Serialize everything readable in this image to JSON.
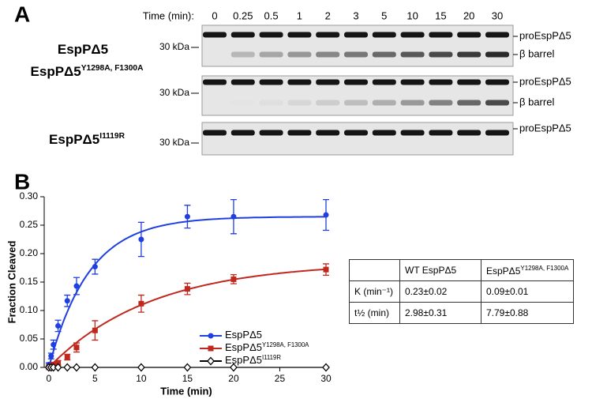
{
  "panel_a": {
    "label": "A",
    "time_label": "Time (min):",
    "time_points": [
      0,
      0.25,
      0.5,
      1,
      2,
      3,
      5,
      10,
      15,
      20,
      30
    ],
    "blots": [
      {
        "name": {
          "text": "EspPΔ5"
        },
        "marker": "30 kDa",
        "bands": [
          "proEspPΔ5",
          "β barrel"
        ]
      },
      {
        "name": {
          "text": "EspPΔ5",
          "sup": "Y1298A, F1300A"
        },
        "marker": "30 kDa",
        "bands": [
          "proEspPΔ5",
          "β barrel"
        ]
      },
      {
        "name": {
          "text": "EspPΔ5",
          "sup": "I1119R"
        },
        "marker": "30 kDa",
        "bands": [
          "proEspPΔ5"
        ]
      }
    ]
  },
  "panel_b": {
    "label": "B"
  },
  "chart_data": {
    "type": "scatter",
    "x_label": "Time (min)",
    "y_label": "Fraction Cleaved",
    "x": [
      0,
      0.25,
      0.5,
      1,
      2,
      3,
      5,
      10,
      15,
      20,
      30
    ],
    "series": [
      {
        "name": "EspPΔ5",
        "color": "#1f3fe0",
        "marker": "circle",
        "line": "fit",
        "values": [
          0.005,
          0.02,
          0.04,
          0.073,
          0.117,
          0.143,
          0.177,
          0.225,
          0.265,
          0.265,
          0.268
        ],
        "errors": [
          0.003,
          0.005,
          0.008,
          0.01,
          0.01,
          0.015,
          0.013,
          0.03,
          0.02,
          0.03,
          0.027
        ],
        "fit": {
          "plateau": 0.265,
          "rate": 0.23
        }
      },
      {
        "name": "EspPΔ5",
        "name_sup": "Y1298A, F1300A",
        "color": "#c0281e",
        "marker": "square",
        "line": "fit",
        "values": [
          0,
          0.002,
          0.005,
          0.008,
          0.018,
          0.035,
          0.065,
          0.112,
          0.138,
          0.155,
          0.172
        ],
        "errors": [
          0.002,
          0.002,
          0.003,
          0.004,
          0.005,
          0.008,
          0.017,
          0.015,
          0.01,
          0.008,
          0.01
        ],
        "fit": {
          "plateau": 0.185,
          "rate": 0.09
        }
      },
      {
        "name": "EspPΔ5",
        "name_sup": "I1119R",
        "color": "#000000",
        "marker": "diamond",
        "line": "connect",
        "values": [
          0,
          0,
          0,
          0,
          0,
          0,
          0,
          0,
          0,
          0,
          0
        ]
      }
    ],
    "xlim": [
      -0.5,
      30
    ],
    "ylim": [
      0,
      0.3
    ],
    "xticks": [
      0,
      5,
      10,
      15,
      20,
      25,
      30
    ],
    "yticks": [
      {
        "value": 0,
        "label": "0.00"
      },
      {
        "value": 0.05,
        "label": "0.05"
      },
      {
        "value": 0.1,
        "label": "0.10"
      },
      {
        "value": 0.15,
        "label": "0.15"
      },
      {
        "value": 0.2,
        "label": "0.20"
      },
      {
        "value": 0.25,
        "label": "0.25"
      },
      {
        "value": 0.3,
        "label": "0.30"
      }
    ]
  },
  "table": {
    "header": [
      "WT EspPΔ5",
      {
        "text": "EspPΔ5",
        "sup": "Y1298A, F1300A"
      }
    ],
    "rows": [
      {
        "label": "K (min⁻¹)",
        "cells": [
          "0.23±0.02",
          "0.09±0.01"
        ]
      },
      {
        "label": "t½ (min)",
        "cells": [
          "2.98±0.31",
          "7.79±0.88"
        ]
      }
    ]
  }
}
